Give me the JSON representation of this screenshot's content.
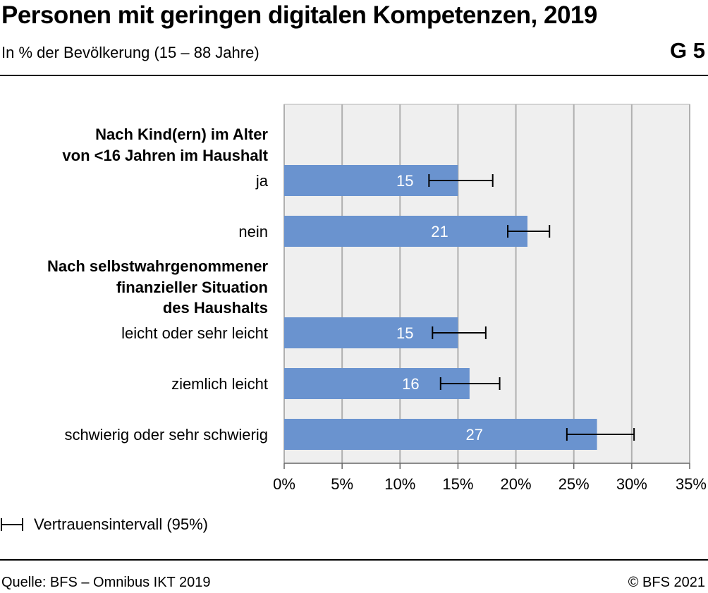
{
  "header": {
    "title": "Personen mit geringen digitalen Kompetenzen, 2019",
    "subtitle": "In % der Bevölkerung (15 – 88 Jahre)",
    "figure_number": "G 5"
  },
  "legend": {
    "label": "Vertrauensintervall (95%)"
  },
  "footer": {
    "source": "Quelle: BFS – Omnibus IKT 2019",
    "copyright": "© BFS 2021"
  },
  "colors": {
    "bar": "#6a93cf",
    "plot_background": "#efefef",
    "grid": "#b0b0b0",
    "error_bar": "#000000",
    "value_label": "#ffffff"
  },
  "chart_data": {
    "type": "bar",
    "orientation": "horizontal",
    "xlim": [
      0,
      35
    ],
    "x_ticks": [
      "0%",
      "5%",
      "10%",
      "15%",
      "20%",
      "25%",
      "30%",
      "35%"
    ],
    "grid": true,
    "legend_position": "bottom-left",
    "groups": [
      {
        "label": "Nach Kind(ern) im Alter von <16 Jahren im Haushalt",
        "label_lines": [
          "Nach Kind(ern) im Alter",
          "von <16 Jahren im Haushalt"
        ],
        "items": [
          {
            "category": "ja",
            "value": 15,
            "label": "15",
            "ci": [
              12.5,
              18.0
            ]
          },
          {
            "category": "nein",
            "value": 21,
            "label": "21",
            "ci": [
              19.3,
              22.9
            ]
          }
        ]
      },
      {
        "label": "Nach selbstwahrgenommener finanzieller Situation des Haushalts",
        "label_lines": [
          "Nach selbstwahrgenommener",
          "finanzieller Situation",
          "des Haushalts"
        ],
        "items": [
          {
            "category": "leicht oder sehr leicht",
            "value": 15,
            "label": "15",
            "ci": [
              12.8,
              17.4
            ]
          },
          {
            "category": "ziemlich leicht",
            "value": 16,
            "label": "16",
            "ci": [
              13.5,
              18.6
            ]
          },
          {
            "category": "schwierig oder sehr schwierig",
            "value": 27,
            "label": "27",
            "ci": [
              24.4,
              30.2
            ]
          }
        ]
      }
    ]
  }
}
